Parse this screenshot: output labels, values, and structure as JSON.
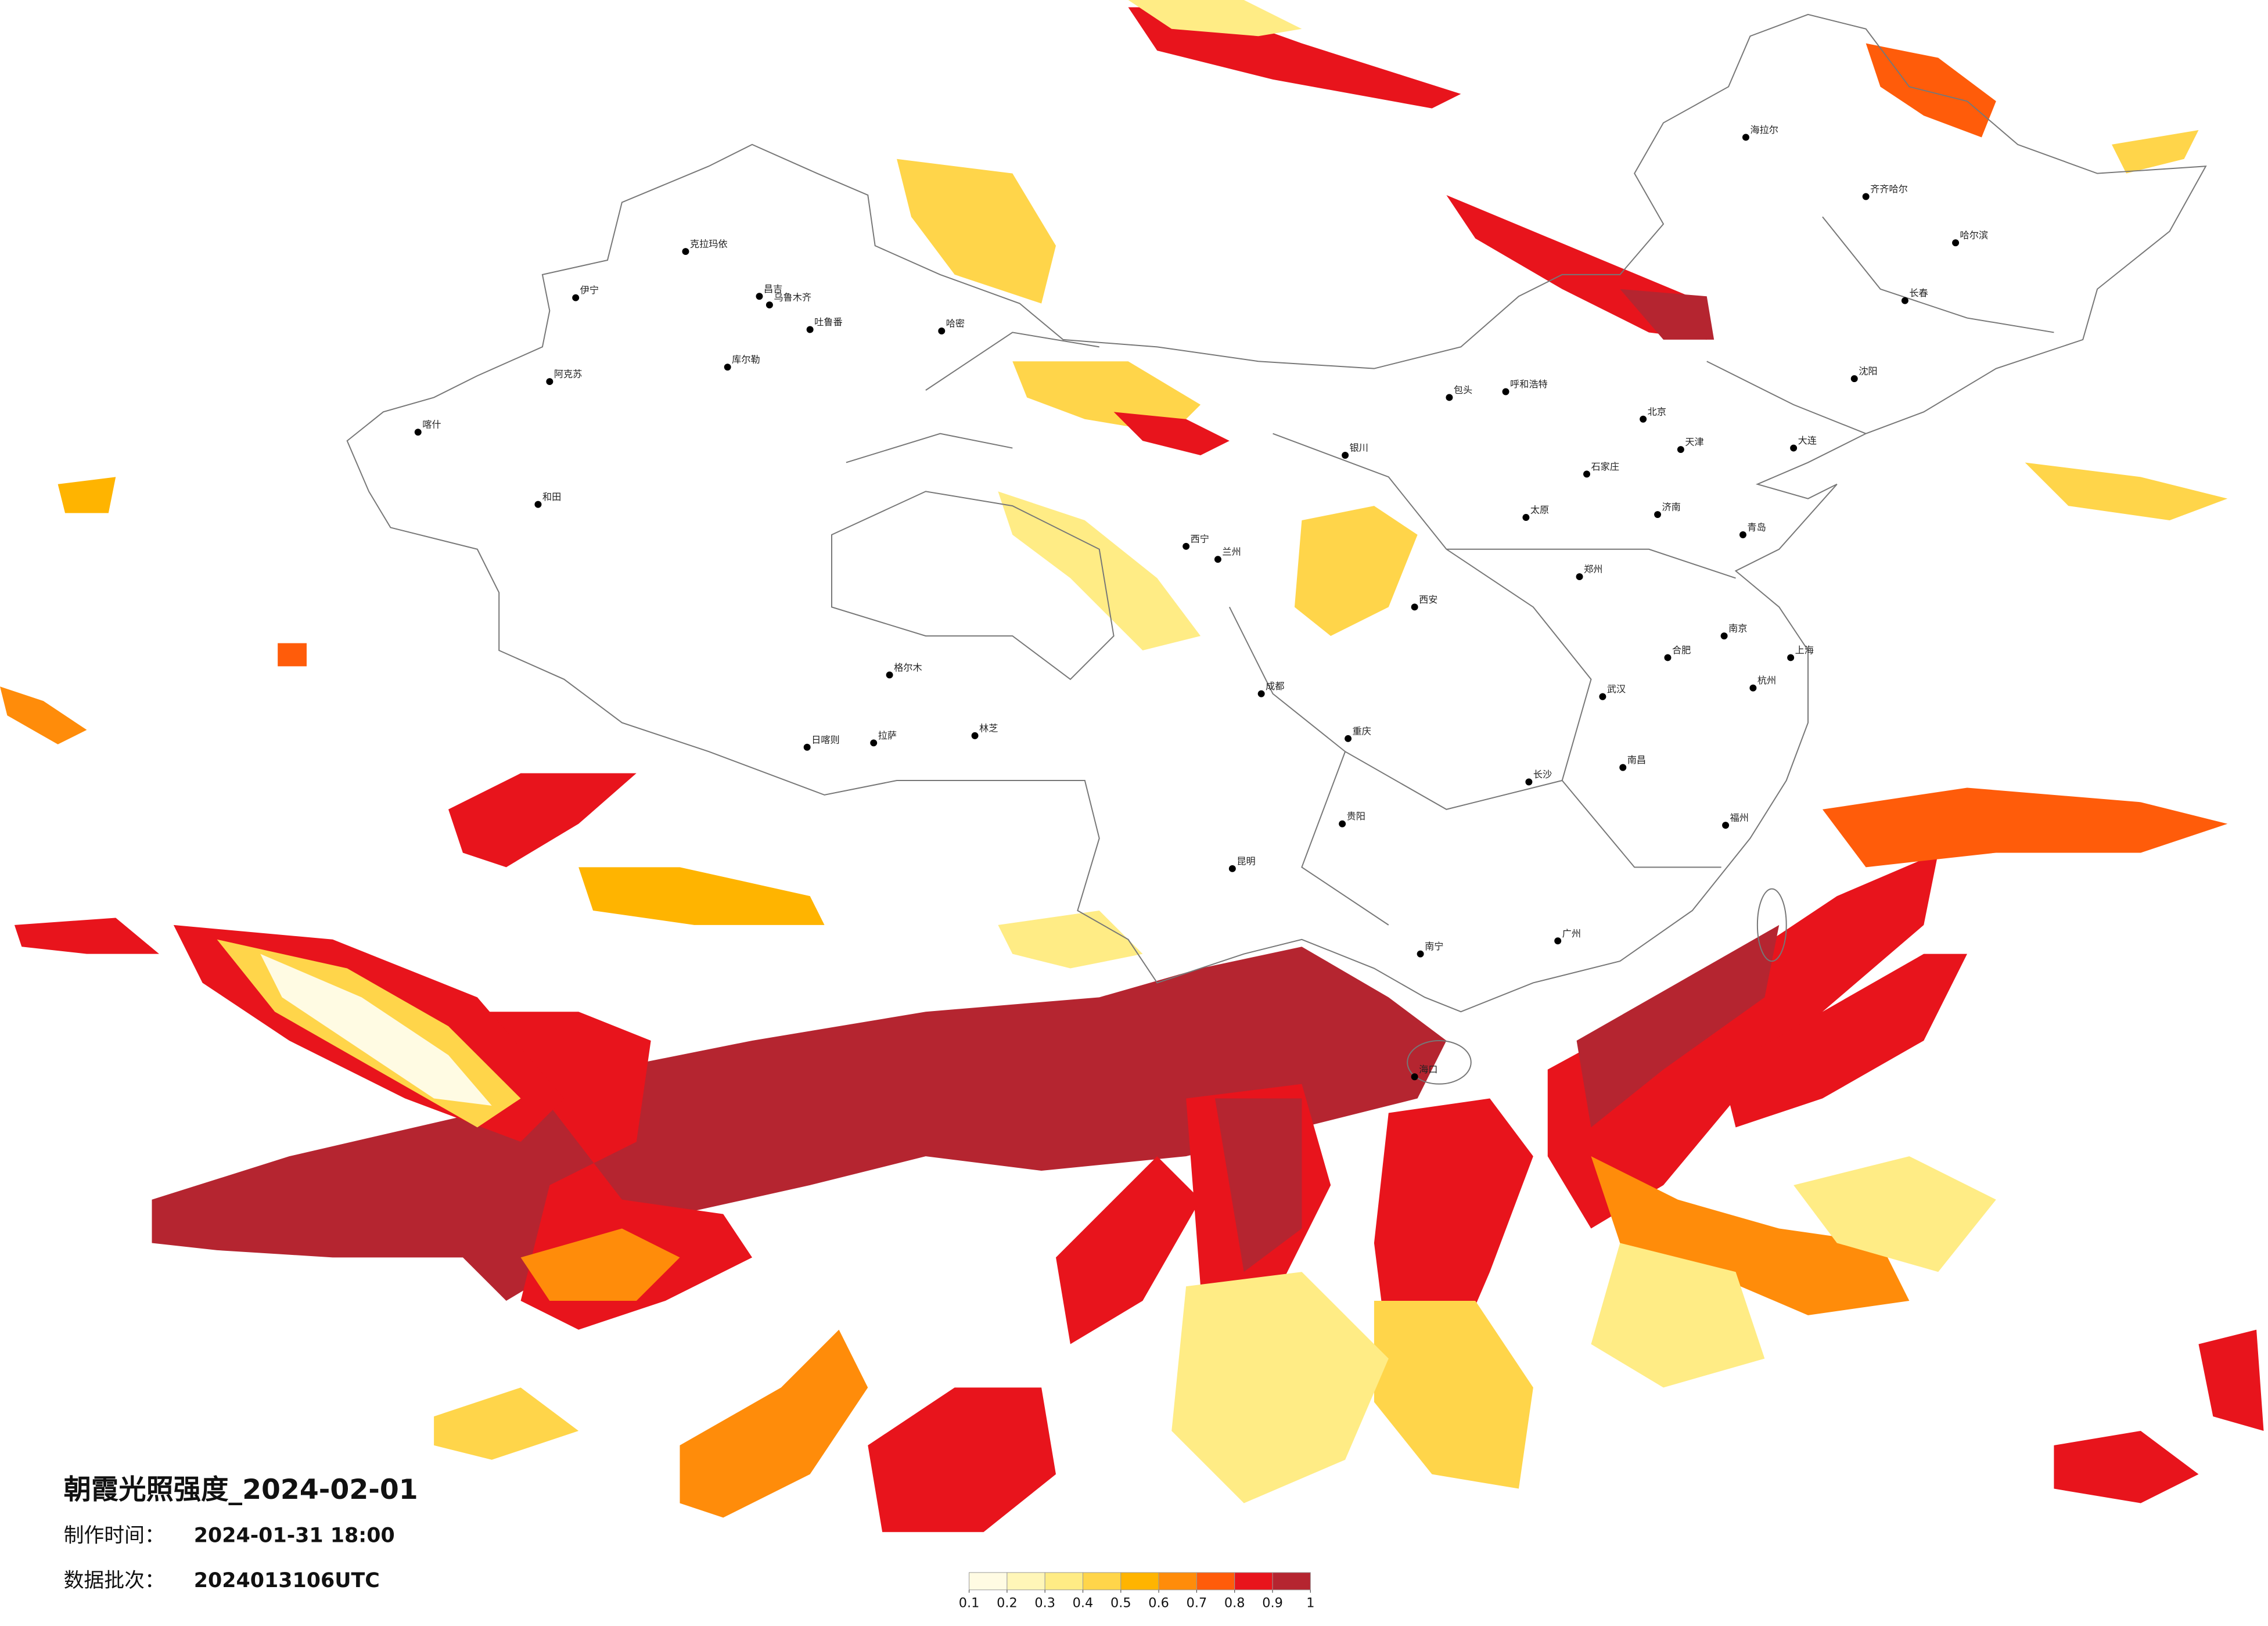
{
  "title": "朝霞光照强度_2024-02-01",
  "made_time": {
    "label": "制作时间：",
    "value": "2024-01-31 18:00"
  },
  "batch": {
    "label": "数据批次：",
    "value": "2024013106UTC"
  },
  "colorbar": {
    "ticks": [
      0.1,
      0.2,
      0.3,
      0.4,
      0.5,
      0.6,
      0.7,
      0.8,
      0.9,
      1
    ],
    "colors": [
      "#fffbe3",
      "#fff6b8",
      "#ffec85",
      "#ffd54a",
      "#ffb400",
      "#ff8c0a",
      "#ff5c0a",
      "#e8141c",
      "#b52530"
    ]
  },
  "cities": [
    "克拉玛依",
    "伊宁",
    "昌吉",
    "乌鲁木齐",
    "吐鲁番",
    "哈密",
    "库尔勒",
    "阿克苏",
    "喀什",
    "和田",
    "格尔木",
    "日喀则",
    "拉萨",
    "林芝",
    "海拉尔",
    "齐齐哈尔",
    "哈尔滨",
    "长春",
    "沈阳",
    "北京",
    "天津",
    "石家庄",
    "太原",
    "呼和浩特",
    "包头",
    "银川",
    "兰州",
    "西宁",
    "西安",
    "郑州",
    "济南",
    "南京",
    "上海",
    "杭州",
    "武汉",
    "长沙",
    "重庆",
    "成都",
    "贵阳",
    "昆明",
    "南宁",
    "广州",
    "福州",
    "南昌",
    "海口",
    "大连",
    "青岛",
    "合肥"
  ]
}
